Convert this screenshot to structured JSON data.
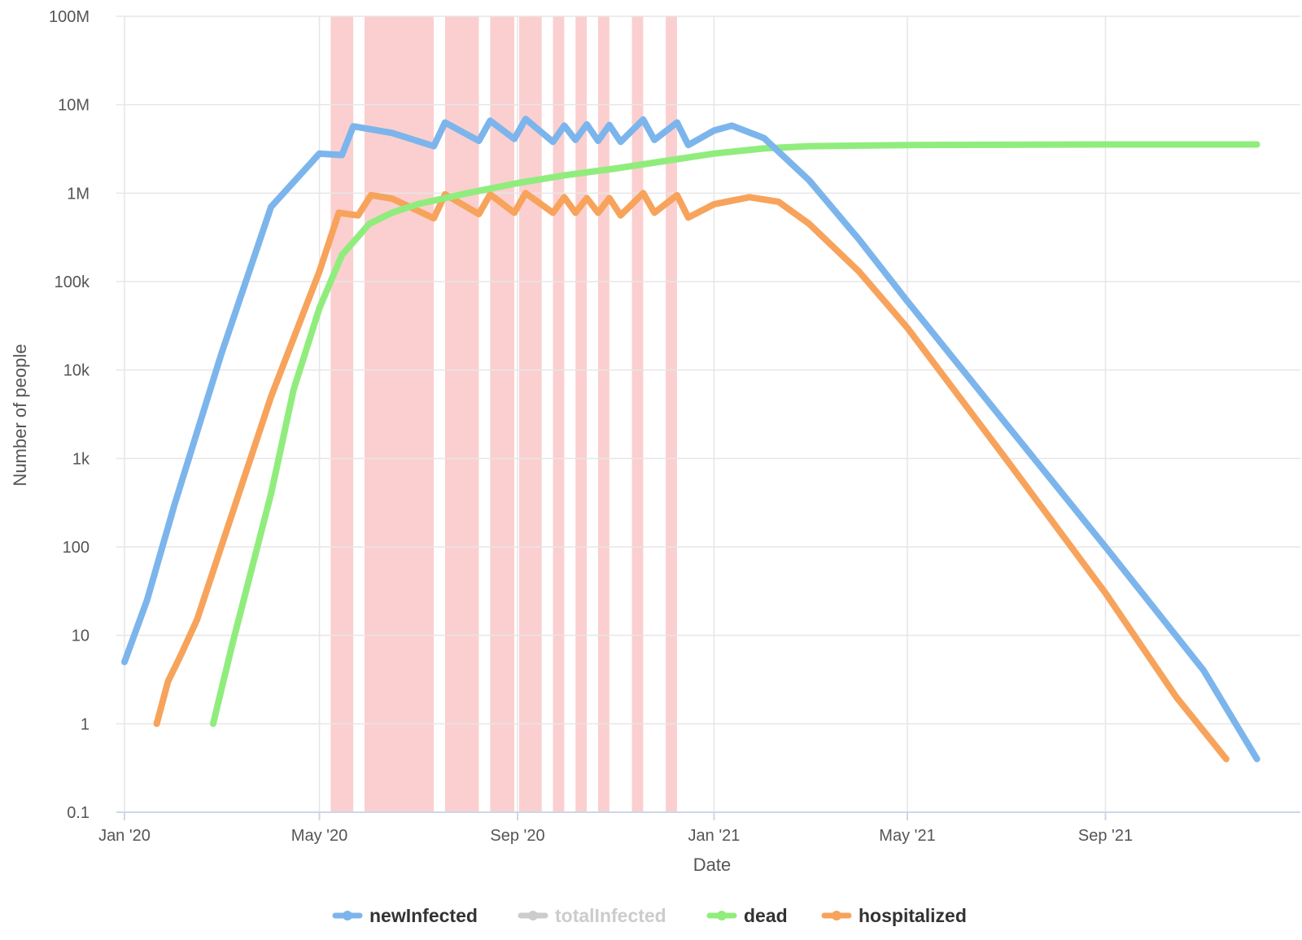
{
  "chart_data": {
    "type": "line",
    "title": "",
    "xlabel": "Date",
    "ylabel": "Number of people",
    "y_scale": "log",
    "ylim": [
      0.1,
      100000000
    ],
    "xlim": [
      "2020-01-01",
      "2021-12-31"
    ],
    "grid": true,
    "legend_position": "bottom-center",
    "x_ticks": [
      {
        "date": "2020-01-01",
        "label": "Jan '20"
      },
      {
        "date": "2020-05-01",
        "label": "May '20"
      },
      {
        "date": "2020-09-01",
        "label": "Sep '20"
      },
      {
        "date": "2021-01-01",
        "label": "Jan '21"
      },
      {
        "date": "2021-05-01",
        "label": "May '21"
      },
      {
        "date": "2021-09-01",
        "label": "Sep '21"
      }
    ],
    "y_ticks": [
      {
        "value": 0.1,
        "label": "0.1"
      },
      {
        "value": 1,
        "label": "1"
      },
      {
        "value": 10,
        "label": "10"
      },
      {
        "value": 100,
        "label": "100"
      },
      {
        "value": 1000,
        "label": "1k"
      },
      {
        "value": 10000,
        "label": "10k"
      },
      {
        "value": 100000,
        "label": "100k"
      },
      {
        "value": 1000000,
        "label": "1M"
      },
      {
        "value": 10000000,
        "label": "10M"
      },
      {
        "value": 100000000,
        "label": "100M"
      }
    ],
    "shaded_periods": {
      "color": "#f9b6b6",
      "ranges": [
        [
          "2020-05-08",
          "2020-05-22"
        ],
        [
          "2020-05-29",
          "2020-07-11"
        ],
        [
          "2020-07-18",
          "2020-08-08"
        ],
        [
          "2020-08-15",
          "2020-08-30"
        ],
        [
          "2020-09-02",
          "2020-09-16"
        ],
        [
          "2020-09-23",
          "2020-09-30"
        ],
        [
          "2020-10-07",
          "2020-10-14"
        ],
        [
          "2020-10-21",
          "2020-10-28"
        ],
        [
          "2020-11-11",
          "2020-11-18"
        ],
        [
          "2020-12-02",
          "2020-12-09"
        ]
      ]
    },
    "series": [
      {
        "name": "newInfected",
        "color": "#7cb5ec",
        "visible": true,
        "points": [
          [
            "2020-01-01",
            5
          ],
          [
            "2020-01-15",
            25
          ],
          [
            "2020-02-01",
            300
          ],
          [
            "2020-03-01",
            15000
          ],
          [
            "2020-04-01",
            700000
          ],
          [
            "2020-05-01",
            2800000
          ],
          [
            "2020-05-15",
            2700000
          ],
          [
            "2020-05-22",
            5700000
          ],
          [
            "2020-06-15",
            4800000
          ],
          [
            "2020-07-11",
            3400000
          ],
          [
            "2020-07-18",
            6300000
          ],
          [
            "2020-08-08",
            3900000
          ],
          [
            "2020-08-15",
            6600000
          ],
          [
            "2020-08-30",
            4100000
          ],
          [
            "2020-09-06",
            6900000
          ],
          [
            "2020-09-23",
            3800000
          ],
          [
            "2020-09-30",
            5800000
          ],
          [
            "2020-10-07",
            4000000
          ],
          [
            "2020-10-14",
            6000000
          ],
          [
            "2020-10-21",
            3900000
          ],
          [
            "2020-10-28",
            5900000
          ],
          [
            "2020-11-04",
            3800000
          ],
          [
            "2020-11-18",
            6800000
          ],
          [
            "2020-11-25",
            4000000
          ],
          [
            "2020-12-09",
            6300000
          ],
          [
            "2020-12-16",
            3500000
          ],
          [
            "2021-01-01",
            5100000
          ],
          [
            "2021-01-12",
            5800000
          ],
          [
            "2021-02-01",
            4200000
          ],
          [
            "2021-03-01",
            1400000
          ],
          [
            "2021-04-01",
            300000
          ],
          [
            "2021-05-01",
            60000
          ],
          [
            "2021-07-01",
            2500
          ],
          [
            "2021-09-01",
            100
          ],
          [
            "2021-11-01",
            4
          ],
          [
            "2021-12-04",
            0.4
          ]
        ]
      },
      {
        "name": "totalInfected",
        "color": "#cccccc",
        "visible": false,
        "points": []
      },
      {
        "name": "dead",
        "color": "#90ed7d",
        "visible": true,
        "points": [
          [
            "2020-02-25",
            1
          ],
          [
            "2020-03-08",
            8
          ],
          [
            "2020-04-01",
            400
          ],
          [
            "2020-04-15",
            6000
          ],
          [
            "2020-05-01",
            50000
          ],
          [
            "2020-05-15",
            200000
          ],
          [
            "2020-06-01",
            450000
          ],
          [
            "2020-06-15",
            600000
          ],
          [
            "2020-07-01",
            750000
          ],
          [
            "2020-08-01",
            1000000
          ],
          [
            "2020-09-01",
            1300000
          ],
          [
            "2020-10-01",
            1600000
          ],
          [
            "2020-11-01",
            1900000
          ],
          [
            "2020-12-01",
            2300000
          ],
          [
            "2021-01-01",
            2800000
          ],
          [
            "2021-02-01",
            3200000
          ],
          [
            "2021-03-01",
            3400000
          ],
          [
            "2021-05-01",
            3500000
          ],
          [
            "2021-09-01",
            3550000
          ],
          [
            "2021-12-04",
            3550000
          ]
        ]
      },
      {
        "name": "hospitalized",
        "color": "#f7a35c",
        "visible": true,
        "points": [
          [
            "2020-01-21",
            1
          ],
          [
            "2020-01-28",
            3
          ],
          [
            "2020-02-05",
            6
          ],
          [
            "2020-02-15",
            15
          ],
          [
            "2020-03-01",
            100
          ],
          [
            "2020-04-01",
            5000
          ],
          [
            "2020-05-01",
            130000
          ],
          [
            "2020-05-13",
            600000
          ],
          [
            "2020-05-25",
            560000
          ],
          [
            "2020-06-02",
            950000
          ],
          [
            "2020-06-15",
            870000
          ],
          [
            "2020-07-11",
            520000
          ],
          [
            "2020-07-18",
            970000
          ],
          [
            "2020-08-08",
            580000
          ],
          [
            "2020-08-15",
            970000
          ],
          [
            "2020-08-30",
            600000
          ],
          [
            "2020-09-06",
            1000000
          ],
          [
            "2020-09-23",
            600000
          ],
          [
            "2020-09-30",
            900000
          ],
          [
            "2020-10-07",
            600000
          ],
          [
            "2020-10-14",
            880000
          ],
          [
            "2020-10-21",
            600000
          ],
          [
            "2020-10-28",
            880000
          ],
          [
            "2020-11-04",
            560000
          ],
          [
            "2020-11-18",
            1000000
          ],
          [
            "2020-11-25",
            600000
          ],
          [
            "2020-12-09",
            950000
          ],
          [
            "2020-12-16",
            530000
          ],
          [
            "2021-01-01",
            750000
          ],
          [
            "2021-01-23",
            900000
          ],
          [
            "2021-02-10",
            800000
          ],
          [
            "2021-03-01",
            450000
          ],
          [
            "2021-04-01",
            130000
          ],
          [
            "2021-05-01",
            30000
          ],
          [
            "2021-07-01",
            1000
          ],
          [
            "2021-09-01",
            30
          ],
          [
            "2021-10-15",
            2
          ],
          [
            "2021-11-15",
            0.4
          ]
        ]
      }
    ]
  }
}
